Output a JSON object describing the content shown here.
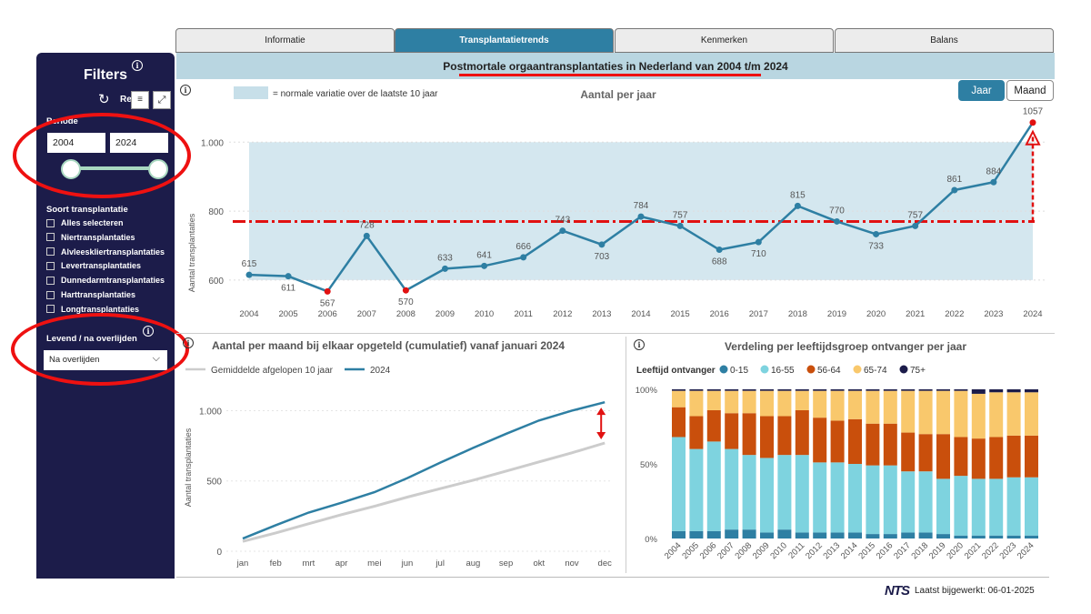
{
  "tabs": [
    {
      "label": "Informatie",
      "active": false
    },
    {
      "label": "Transplantatietrends",
      "active": true
    },
    {
      "label": "Kenmerken",
      "active": false
    },
    {
      "label": "Balans",
      "active": false
    }
  ],
  "sidebar": {
    "title": "Filters",
    "reset_label": "Re",
    "periode_label": "Periode",
    "year_from": "2004",
    "year_to": "2024",
    "soort_label": "Soort transplantatie",
    "soort_items": [
      "Alles selecteren",
      "Niertransplantaties",
      "Alvleesklier­transplantaties",
      "Levertransplantaties",
      "Dunnedarmtransplantaties",
      "Harttransplantaties",
      "Longtransplantaties"
    ],
    "levend_label": "Levend / na overlijden",
    "levend_value": "Na overlijden"
  },
  "banner": "Postmortale orgaantransplantaties in Nederland van 2004 t/m 2024",
  "buttons": {
    "jaar": "Jaar",
    "maand": "Maand"
  },
  "colors": {
    "accent": "#2e7fa3",
    "navy": "#1c1c4a",
    "red": "#e11111",
    "band": "#d4e7ef"
  },
  "footer": {
    "logo": "NTS",
    "updated": "Laatst bijgewerkt: 06-01-2025"
  },
  "chart_data": [
    {
      "type": "line",
      "title": "Aantal per jaar",
      "legend": "= normale variatie over de laatste 10 jaar",
      "ylabel": "Aantal transplantaties",
      "x": [
        "2004",
        "2005",
        "2006",
        "2007",
        "2008",
        "2009",
        "2010",
        "2011",
        "2012",
        "2013",
        "2014",
        "2015",
        "2016",
        "2017",
        "2018",
        "2019",
        "2020",
        "2021",
        "2022",
        "2023",
        "2024"
      ],
      "values": [
        615,
        611,
        567,
        728,
        570,
        633,
        641,
        666,
        743,
        703,
        784,
        757,
        688,
        710,
        815,
        770,
        733,
        757,
        861,
        884,
        1057
      ],
      "highlight": [
        "2006",
        "2008",
        "2024"
      ],
      "band": [
        600,
        1000
      ],
      "reference": 770,
      "yticks": [
        600,
        800,
        1000
      ],
      "ytick_labels": [
        "600",
        "800",
        "1.000"
      ],
      "ylim": [
        560,
        1080
      ]
    },
    {
      "type": "line",
      "title": "Aantal per maand bij elkaar opgeteld (cumulatief) vanaf januari 2024",
      "ylabel": "Aantal transplantaties",
      "categories": [
        "jan",
        "feb",
        "mrt",
        "apr",
        "mei",
        "jun",
        "jul",
        "aug",
        "sep",
        "okt",
        "nov",
        "dec"
      ],
      "series": [
        {
          "name": "Gemiddelde afgelopen 10 jaar",
          "color": "#cccccc",
          "values": [
            70,
            130,
            195,
            260,
            320,
            385,
            445,
            505,
            570,
            635,
            700,
            770
          ]
        },
        {
          "name": "2024",
          "color": "#2e7fa3",
          "values": [
            90,
            185,
            275,
            345,
            420,
            520,
            630,
            735,
            835,
            930,
            1000,
            1060
          ]
        }
      ],
      "yticks": [
        0,
        500,
        1000
      ],
      "ytick_labels": [
        "0",
        "500",
        "1.000"
      ],
      "ylim": [
        0,
        1100
      ]
    },
    {
      "type": "bar",
      "stacked": true,
      "title": "Verdeling per leeftijdsgroep ontvanger per jaar",
      "legend_title": "Leeftijd ontvanger",
      "categories": [
        "2004",
        "2005",
        "2006",
        "2007",
        "2008",
        "2009",
        "2010",
        "2011",
        "2012",
        "2013",
        "2014",
        "2015",
        "2016",
        "2017",
        "2018",
        "2019",
        "2020",
        "2021",
        "2022",
        "2023",
        "2024"
      ],
      "series": [
        {
          "name": "0-15",
          "color": "#2e7fa3",
          "values": [
            5,
            5,
            5,
            6,
            6,
            4,
            6,
            4,
            4,
            4,
            4,
            3,
            3,
            4,
            4,
            3,
            2,
            2,
            2,
            2,
            2
          ]
        },
        {
          "name": "16-55",
          "color": "#7ed3df",
          "values": [
            63,
            55,
            60,
            54,
            50,
            50,
            50,
            52,
            47,
            47,
            46,
            46,
            46,
            41,
            41,
            37,
            40,
            38,
            38,
            39,
            39
          ]
        },
        {
          "name": "56-64",
          "color": "#c94f0c",
          "values": [
            20,
            22,
            21,
            24,
            28,
            28,
            26,
            30,
            30,
            28,
            30,
            28,
            28,
            26,
            25,
            30,
            26,
            27,
            28,
            28,
            28
          ]
        },
        {
          "name": "65-74",
          "color": "#f9c86c",
          "values": [
            11,
            17,
            13,
            15,
            15,
            17,
            17,
            13,
            18,
            20,
            19,
            22,
            22,
            28,
            29,
            29,
            31,
            30,
            30,
            29,
            29
          ]
        },
        {
          "name": "75+",
          "color": "#1c1c4a",
          "values": [
            1,
            1,
            1,
            1,
            1,
            1,
            1,
            1,
            1,
            1,
            1,
            1,
            1,
            1,
            1,
            1,
            1,
            3,
            2,
            2,
            2
          ]
        }
      ],
      "yticks": [
        0,
        50,
        100
      ],
      "ytick_labels": [
        "0%",
        "50%",
        "100%"
      ]
    }
  ]
}
